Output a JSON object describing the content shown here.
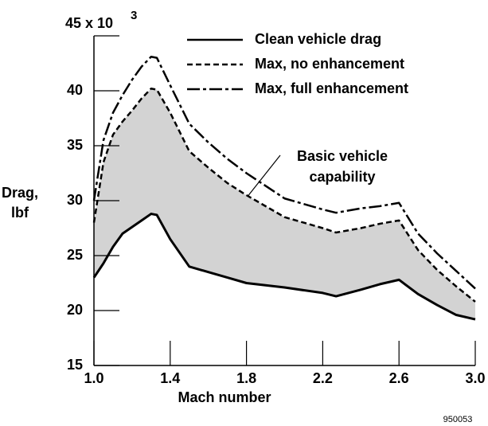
{
  "chart_data": {
    "type": "line",
    "ylabel": [
      "Drag,",
      "lbf"
    ],
    "xlabel": "Mach number",
    "y_exponent": "3",
    "footnote": "950053",
    "annotation": [
      "Basic vehicle",
      "capability"
    ],
    "legend": "top-right",
    "grid": false,
    "area_color": "#d3d3d3",
    "xlim": [
      1.0,
      3.0
    ],
    "ylim": [
      15,
      45
    ],
    "xticks": [
      {
        "value": 1.0,
        "label": "1.0"
      },
      1.4,
      1.8,
      2.2,
      2.6,
      {
        "value": 3.0,
        "label": "3.0"
      }
    ],
    "yticks": [
      15,
      20,
      25,
      30,
      35,
      40,
      {
        "value": 45,
        "label": "45 x 10"
      }
    ],
    "x": [
      1.0,
      1.05,
      1.1,
      1.15,
      1.2,
      1.25,
      1.3,
      1.33,
      1.4,
      1.5,
      1.6,
      1.7,
      1.8,
      2.0,
      2.2,
      2.27,
      2.4,
      2.5,
      2.6,
      2.7,
      2.8,
      2.9,
      3.0
    ],
    "series": [
      {
        "name": "Clean vehicle drag",
        "color": "#000000",
        "dash": "none",
        "values": [
          23.0,
          24.3,
          25.8,
          27.0,
          27.6,
          28.2,
          28.8,
          28.7,
          26.5,
          24.0,
          23.5,
          23.0,
          22.5,
          22.1,
          21.6,
          21.3,
          21.9,
          22.4,
          22.8,
          21.5,
          20.5,
          19.6,
          19.2
        ]
      },
      {
        "name": "Max, no enhancement",
        "color": "#000000",
        "dash": "7,4",
        "values": [
          28.0,
          33.5,
          36.0,
          37.2,
          38.2,
          39.3,
          40.2,
          40.1,
          38.0,
          34.5,
          33.0,
          31.6,
          30.5,
          28.5,
          27.5,
          27.1,
          27.5,
          27.9,
          28.2,
          25.5,
          23.7,
          22.2,
          20.8
        ]
      },
      {
        "name": "Max, full enhancement",
        "color": "#000000",
        "dash": "16,4,4,4",
        "values": [
          30.0,
          35.5,
          38.0,
          39.6,
          41.0,
          42.2,
          43.1,
          43.0,
          40.5,
          37.0,
          35.3,
          33.8,
          32.5,
          30.2,
          29.2,
          28.9,
          29.3,
          29.5,
          29.8,
          27.0,
          25.2,
          23.6,
          22.0
        ]
      }
    ]
  }
}
